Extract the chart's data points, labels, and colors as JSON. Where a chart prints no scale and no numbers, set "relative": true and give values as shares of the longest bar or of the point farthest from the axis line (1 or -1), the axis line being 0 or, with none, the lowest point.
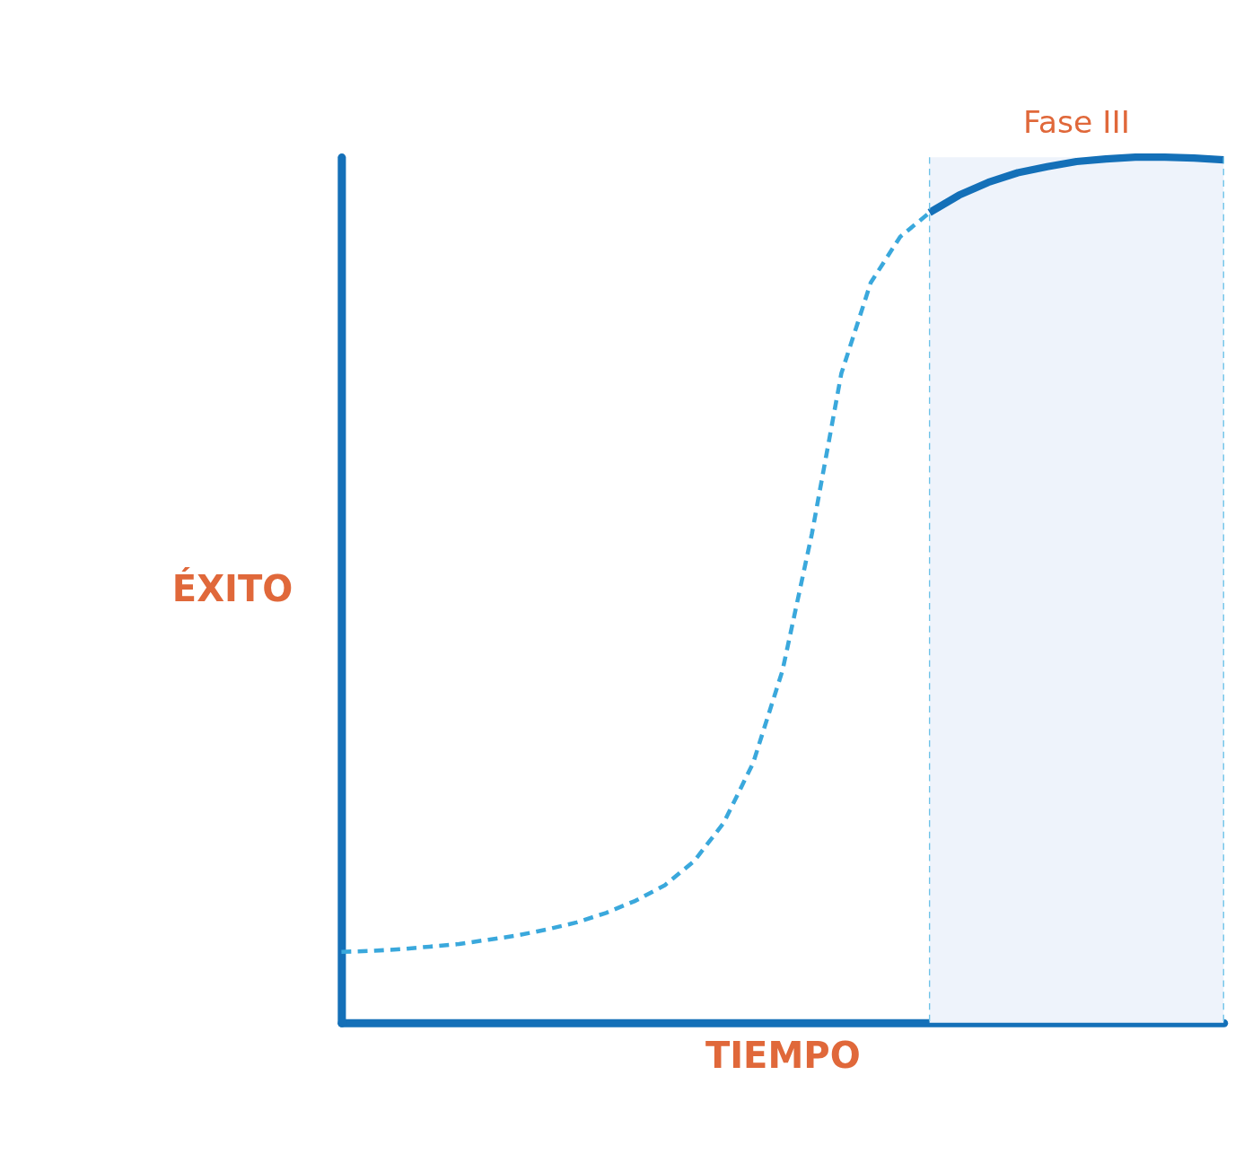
{
  "chart_data": {
    "type": "line",
    "relative": true,
    "xlabel": "TIEMPO",
    "ylabel": "ÉXITO",
    "tick_labels": false,
    "grid": false,
    "marker": "none",
    "categories": [
      null,
      null,
      null,
      null,
      null,
      null,
      null,
      null,
      null,
      null,
      null,
      null,
      null,
      null,
      null,
      null,
      null,
      null,
      null,
      null,
      null,
      null,
      null,
      null,
      null,
      null,
      null,
      null,
      null,
      null,
      null
    ],
    "series": [
      {
        "color": "#3aa8dc",
        "line_style": "dashed",
        "values": [
          0.082,
          0.083,
          0.085,
          0.088,
          0.091,
          0.096,
          0.101,
          0.108,
          0.116,
          0.127,
          0.141,
          0.159,
          0.187,
          0.231,
          0.3,
          0.407,
          0.565,
          0.75,
          0.855,
          0.908,
          0.936,
          null,
          null,
          null,
          null,
          null,
          null,
          null,
          null,
          null,
          null
        ]
      },
      {
        "color": "#1470b8",
        "line_style": "solid",
        "values": [
          null,
          null,
          null,
          null,
          null,
          null,
          null,
          null,
          null,
          null,
          null,
          null,
          null,
          null,
          null,
          null,
          null,
          null,
          null,
          null,
          0.936,
          0.956,
          0.971,
          0.982,
          0.989,
          0.995,
          0.998,
          1.0,
          1.0,
          0.999,
          0.997
        ]
      }
    ],
    "annotations": [
      "Fase III"
    ]
  }
}
